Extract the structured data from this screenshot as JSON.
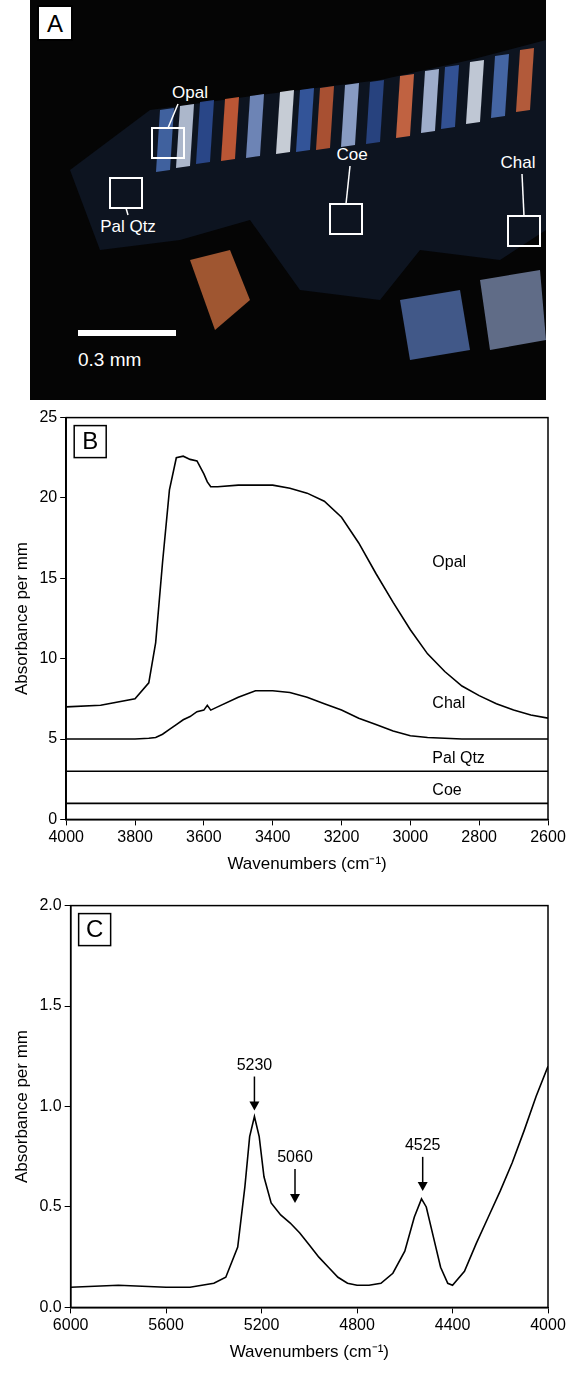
{
  "image_panel": {
    "panel_label": "A",
    "labels": [
      "Opal",
      "Pal Qtz",
      "Coe",
      "Chal"
    ],
    "scale_bar": "0.3 mm"
  },
  "chart_data": [
    {
      "type": "line",
      "panel_label": "B",
      "x_label": "Wavenumbers (cm⁻¹)",
      "y_label": "Absorbance per mm",
      "x": [
        4000,
        3900,
        3800,
        3760,
        3740,
        3720,
        3700,
        3680,
        3660,
        3640,
        3620,
        3600,
        3590,
        3580,
        3560,
        3500,
        3450,
        3400,
        3350,
        3300,
        3250,
        3200,
        3150,
        3100,
        3050,
        3000,
        2950,
        2900,
        2850,
        2800,
        2750,
        2700,
        2650,
        2600
      ],
      "series": [
        {
          "name": "Opal",
          "color": "#000000",
          "values": [
            7.0,
            7.1,
            7.5,
            8.5,
            11,
            16,
            20.5,
            22.5,
            22.6,
            22.4,
            22.3,
            21.5,
            21.0,
            20.7,
            20.7,
            20.8,
            20.8,
            20.8,
            20.6,
            20.3,
            19.8,
            18.8,
            17.2,
            15.3,
            13.5,
            11.8,
            10.3,
            9.2,
            8.3,
            7.7,
            7.2,
            6.8,
            6.5,
            6.3
          ]
        },
        {
          "name": "Chal",
          "color": "#000000",
          "values": [
            5.0,
            5.0,
            5.0,
            5.05,
            5.1,
            5.3,
            5.6,
            5.9,
            6.2,
            6.4,
            6.7,
            6.8,
            7.1,
            6.8,
            7.0,
            7.6,
            8.0,
            8.0,
            7.9,
            7.6,
            7.2,
            6.8,
            6.3,
            5.9,
            5.5,
            5.2,
            5.1,
            5.05,
            5.0,
            5.0,
            5.0,
            5.0,
            5.0,
            5.0
          ]
        },
        {
          "name": "Pal Qtz",
          "color": "#000000",
          "values": [
            3.0,
            3.0,
            3.0,
            3.0,
            3.0,
            3.0,
            3.0,
            3.0,
            3.0,
            3.0,
            3.0,
            3.0,
            3.0,
            3.0,
            3.0,
            3.0,
            3.0,
            3.0,
            3.0,
            3.0,
            3.0,
            3.0,
            3.0,
            3.0,
            3.0,
            3.0,
            3.0,
            3.0,
            3.0,
            3.0,
            3.0,
            3.0,
            3.0,
            3.0
          ]
        },
        {
          "name": "Coe",
          "color": "#000000",
          "values": [
            1.0,
            1.0,
            1.0,
            1.0,
            1.0,
            1.0,
            1.0,
            1.0,
            1.0,
            1.0,
            1.0,
            1.0,
            1.0,
            1.0,
            1.0,
            1.0,
            1.0,
            1.0,
            1.0,
            1.0,
            1.0,
            1.0,
            1.0,
            1.0,
            1.0,
            1.0,
            1.0,
            1.0,
            1.0,
            1.0,
            1.0,
            1.0,
            1.0,
            1.0
          ]
        }
      ],
      "xlim": [
        4000,
        2600
      ],
      "xticks": [
        4000,
        3800,
        3600,
        3400,
        3200,
        3000,
        2800,
        2600
      ],
      "ylim": [
        0,
        25
      ],
      "yticks": [
        0,
        5,
        10,
        15,
        20,
        25
      ],
      "grid": false
    },
    {
      "type": "line",
      "panel_label": "C",
      "x_label": "Wavenumbers (cm⁻¹)",
      "y_label": "Absorbance per mm",
      "x": [
        6000,
        5800,
        5600,
        5500,
        5400,
        5350,
        5300,
        5270,
        5250,
        5230,
        5210,
        5190,
        5160,
        5120,
        5080,
        5040,
        5000,
        4960,
        4920,
        4880,
        4840,
        4800,
        4750,
        4700,
        4650,
        4600,
        4560,
        4530,
        4510,
        4480,
        4450,
        4420,
        4400,
        4350,
        4300,
        4250,
        4200,
        4150,
        4100,
        4050,
        4000
      ],
      "series": [
        {
          "color": "#000000",
          "values": [
            0.1,
            0.11,
            0.1,
            0.1,
            0.12,
            0.15,
            0.3,
            0.6,
            0.85,
            0.95,
            0.85,
            0.65,
            0.52,
            0.46,
            0.42,
            0.37,
            0.31,
            0.25,
            0.2,
            0.15,
            0.12,
            0.11,
            0.11,
            0.12,
            0.17,
            0.28,
            0.45,
            0.54,
            0.5,
            0.35,
            0.2,
            0.12,
            0.11,
            0.18,
            0.32,
            0.45,
            0.58,
            0.72,
            0.88,
            1.05,
            1.2
          ]
        }
      ],
      "annotations": [
        {
          "text": "5230",
          "x": 5230,
          "y": 0.98
        },
        {
          "text": "5060",
          "x": 5060,
          "y": 0.52
        },
        {
          "text": "4525",
          "x": 4525,
          "y": 0.58
        }
      ],
      "xlim": [
        6000,
        4000
      ],
      "xticks": [
        6000,
        5600,
        5200,
        4800,
        4400,
        4000
      ],
      "ylim": [
        0,
        2
      ],
      "yticks": [
        {
          "value": 0,
          "label": "0.0"
        },
        0.5,
        {
          "value": 1,
          "label": "1.0"
        },
        1.5,
        {
          "value": 2,
          "label": "2.0"
        }
      ],
      "grid": false
    }
  ]
}
